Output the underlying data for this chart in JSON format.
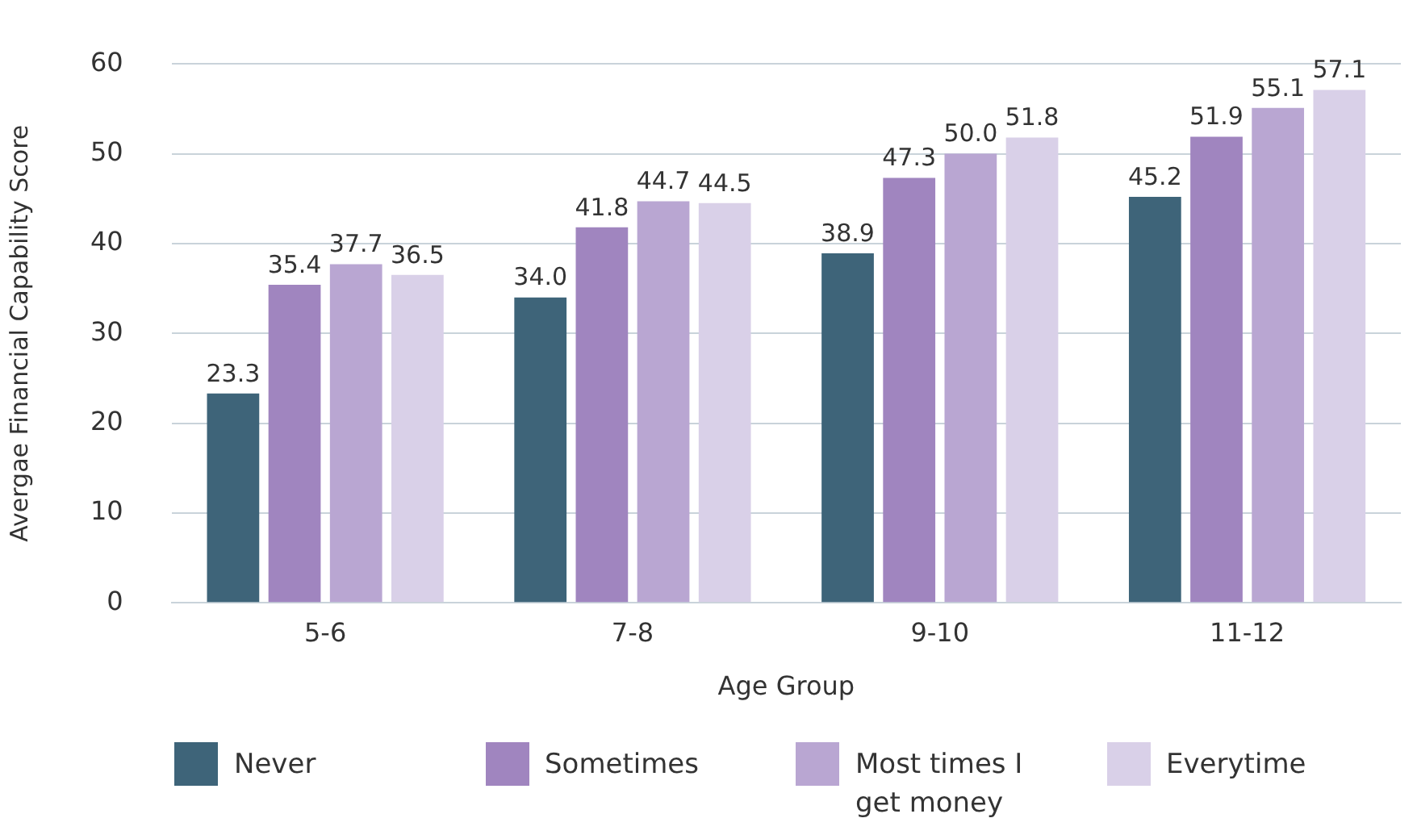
{
  "chart_data": {
    "type": "bar",
    "xlabel": "Age Group",
    "ylabel": "Avergae Financial Capability Score",
    "categories": [
      "5-6",
      "7-8",
      "9-10",
      "11-12"
    ],
    "series": [
      {
        "name": "Never",
        "color": "#3e6479",
        "values": [
          23.3,
          34.0,
          38.9,
          45.2
        ],
        "value_labels": [
          "23.3",
          "34.0",
          "38.9",
          "45.2"
        ]
      },
      {
        "name": "Sometimes",
        "color": "#a085bf",
        "values": [
          35.4,
          41.8,
          47.3,
          51.9
        ],
        "value_labels": [
          "35.4",
          "41.8",
          "47.3",
          "51.9"
        ]
      },
      {
        "name": "Most times I get money",
        "color": "#b9a6d2",
        "values": [
          37.7,
          44.7,
          50.0,
          55.1
        ],
        "value_labels": [
          "37.7",
          "44.7",
          "50.0",
          "55.1"
        ]
      },
      {
        "name": "Everytime",
        "color": "#d9d0e8",
        "values": [
          36.5,
          44.5,
          51.8,
          57.1
        ],
        "value_labels": [
          "36.5",
          "44.5",
          "51.8",
          "57.1"
        ]
      }
    ],
    "ylim": [
      0,
      60
    ],
    "yticks": [
      0,
      10,
      20,
      30,
      40,
      50,
      60
    ],
    "grid": "y",
    "legend": "bottom"
  }
}
